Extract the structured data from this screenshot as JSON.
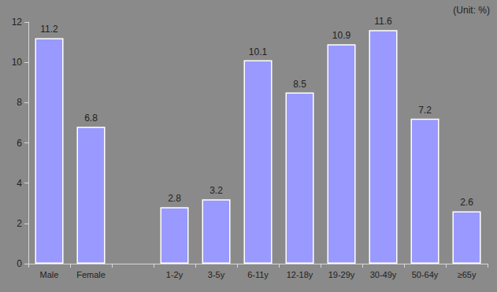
{
  "chart_data": {
    "type": "bar",
    "annotation": "(Unit: %)",
    "categories": [
      "Male",
      "Female",
      null,
      "1-2y",
      "3-5y",
      "6-11y",
      "12-18y",
      "19-29y",
      "30-49y",
      "50-64y",
      "≥65y"
    ],
    "values": [
      11.2,
      6.8,
      null,
      2.8,
      3.2,
      10.1,
      8.5,
      10.9,
      11.6,
      7.2,
      2.6
    ],
    "color": "#9999ff",
    "ylim": [
      0,
      12
    ],
    "yticks": [
      0,
      2,
      4,
      6,
      8,
      10,
      12
    ],
    "grid": false,
    "data_labels": true
  }
}
